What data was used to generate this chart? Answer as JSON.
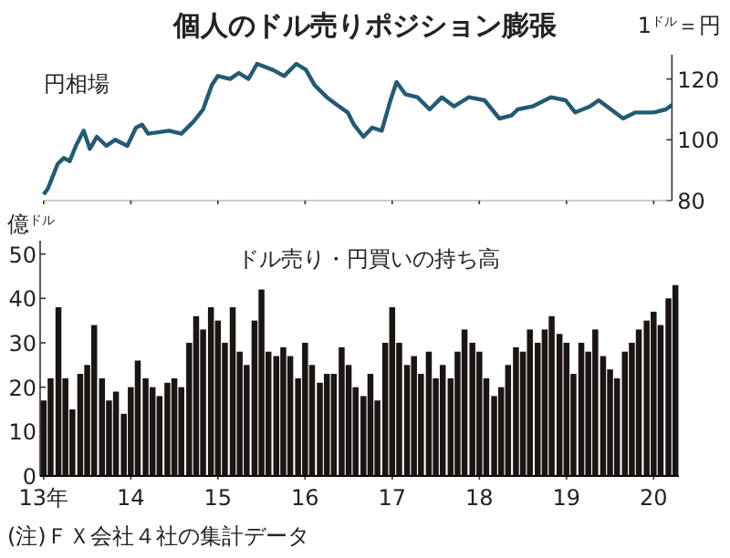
{
  "chart_data": [
    {
      "type": "line",
      "title": "個人のドル売りポジション膨張",
      "ylabel": "1$^{ドル}$＝円",
      "xlim": [
        13,
        20.21
      ],
      "xticks": [
        13,
        14,
        15,
        16,
        17,
        18,
        19,
        20
      ],
      "ylim": [
        80,
        128
      ],
      "yticks": [
        80,
        100,
        120
      ],
      "tick_labels": "y",
      "grid": false,
      "legend": false,
      "series": [
        {
          "name": "円相場",
          "color": "#245a73",
          "x": [
            13.0,
            13.05,
            13.16,
            13.23,
            13.3,
            13.37,
            13.46,
            13.53,
            13.61,
            13.72,
            13.82,
            13.96,
            14.06,
            14.13,
            14.2,
            14.44,
            14.58,
            14.72,
            14.83,
            14.93,
            15.0,
            15.14,
            15.24,
            15.35,
            15.45,
            15.63,
            15.76,
            15.9,
            16.01,
            16.11,
            16.25,
            16.39,
            16.49,
            16.56,
            16.67,
            16.77,
            16.88,
            16.98,
            17.05,
            17.15,
            17.29,
            17.43,
            17.57,
            17.71,
            17.88,
            18.06,
            18.23,
            18.37,
            18.44,
            18.61,
            18.82,
            18.99,
            19.1,
            19.27,
            19.37,
            19.51,
            19.65,
            19.79,
            20.0,
            20.14,
            20.21
          ],
          "values": [
            82,
            84,
            92,
            94,
            93,
            98,
            103,
            97,
            101,
            98,
            100,
            98,
            104,
            105,
            102,
            103,
            102,
            106,
            110,
            118,
            121,
            120,
            122,
            120,
            125,
            123,
            121,
            125,
            123,
            118,
            114,
            111,
            109,
            105,
            101,
            104,
            103,
            113,
            119,
            115,
            114,
            110,
            114,
            111,
            114,
            113,
            107,
            108,
            110,
            111,
            114,
            113,
            109,
            111,
            113,
            110,
            107,
            109,
            109,
            110,
            111.5
          ]
        }
      ]
    },
    {
      "type": "bar",
      "ylabel": "億$^{ドル}$",
      "xlim": [
        12.96,
        20.29
      ],
      "ylim": [
        0,
        53
      ],
      "yticks": [
        0,
        10,
        20,
        30,
        40,
        50
      ],
      "xticks": [
        {
          "value": 13,
          "label": "13年"
        },
        14,
        15,
        16,
        17,
        18,
        19,
        20
      ],
      "annotations": [
        "(注)ＦＸ会社４社の集計データ"
      ],
      "grid": false,
      "legend": false,
      "series": [
        {
          "name": "ドル売り・円買いの持ち高",
          "color": "#1a1512",
          "x": [
            13.0,
            13.08,
            13.17,
            13.25,
            13.33,
            13.42,
            13.5,
            13.58,
            13.67,
            13.75,
            13.83,
            13.92,
            14.0,
            14.08,
            14.17,
            14.25,
            14.33,
            14.42,
            14.5,
            14.58,
            14.67,
            14.75,
            14.83,
            14.92,
            15.0,
            15.08,
            15.17,
            15.25,
            15.33,
            15.42,
            15.5,
            15.58,
            15.67,
            15.75,
            15.83,
            15.92,
            16.0,
            16.08,
            16.17,
            16.25,
            16.33,
            16.42,
            16.5,
            16.58,
            16.67,
            16.75,
            16.83,
            16.92,
            17.0,
            17.08,
            17.17,
            17.25,
            17.33,
            17.42,
            17.5,
            17.58,
            17.67,
            17.75,
            17.83,
            17.92,
            18.0,
            18.08,
            18.17,
            18.25,
            18.33,
            18.42,
            18.5,
            18.58,
            18.67,
            18.75,
            18.83,
            18.92,
            19.0,
            19.08,
            19.17,
            19.25,
            19.33,
            19.42,
            19.5,
            19.58,
            19.67,
            19.75,
            19.83,
            19.92,
            20.0,
            20.08,
            20.17,
            20.25
          ],
          "values": [
            17,
            22,
            38,
            22,
            15,
            23,
            25,
            34,
            22,
            17,
            19,
            14,
            20,
            26,
            22,
            20,
            18,
            21,
            22,
            20,
            30,
            36,
            33,
            38,
            35,
            30,
            38,
            28,
            25,
            35,
            42,
            28,
            27,
            29,
            27,
            22,
            30,
            25,
            21,
            23,
            23,
            29,
            25,
            20,
            18,
            23,
            17,
            30,
            38,
            30,
            25,
            27,
            23,
            28,
            22,
            25,
            22,
            28,
            33,
            30,
            28,
            22,
            18,
            20,
            25,
            29,
            28,
            33,
            30,
            33,
            36,
            32,
            30,
            23,
            30,
            28,
            33,
            27,
            24,
            22,
            28,
            30,
            33,
            35,
            37,
            34,
            40,
            43
          ]
        }
      ]
    }
  ]
}
